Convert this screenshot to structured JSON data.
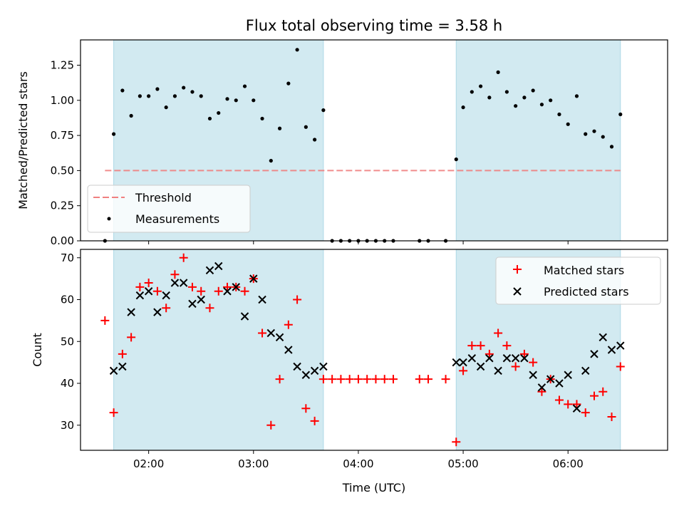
{
  "chart_data": {
    "type": "scatter",
    "title": "Flux total observing time = 3.58 h",
    "xlabel": "Time (UTC)",
    "x_unit": "UTC time (HH:MM)",
    "xlim": [
      "01:21",
      "06:57"
    ],
    "x_ticks": [
      "02:00",
      "03:00",
      "04:00",
      "05:00",
      "06:00"
    ],
    "shaded_intervals": [
      [
        "01:40",
        "03:40"
      ],
      [
        "04:56",
        "06:30"
      ]
    ],
    "shade_color": "#add8e6",
    "panels": [
      {
        "id": "ratio",
        "ylabel": "Matched/Predicted stars",
        "ylim": [
          0,
          1.43
        ],
        "y_ticks": [
          0,
          0.25,
          0.5,
          0.75,
          1.0,
          1.25
        ],
        "y_tick_labels": [
          "0.00",
          "0.25",
          "0.50",
          "0.75",
          "1.00",
          "1.25"
        ],
        "legend_position": "lower-left",
        "threshold": {
          "name": "Threshold",
          "value": 0.5,
          "x_range": [
            "01:35",
            "06:30"
          ],
          "color": "#f08080",
          "style": "dashed"
        },
        "series": [
          {
            "name": "Measurements",
            "marker": "dot",
            "color": "#000000",
            "x": [
              "01:35",
              "01:40",
              "01:45",
              "01:50",
              "01:55",
              "02:00",
              "02:05",
              "02:10",
              "02:15",
              "02:20",
              "02:25",
              "02:30",
              "02:35",
              "02:40",
              "02:45",
              "02:50",
              "02:55",
              "03:00",
              "03:05",
              "03:10",
              "03:15",
              "03:20",
              "03:25",
              "03:30",
              "03:35",
              "03:40",
              "03:45",
              "03:50",
              "03:55",
              "04:00",
              "04:05",
              "04:10",
              "04:15",
              "04:20",
              "04:35",
              "04:40",
              "04:50",
              "04:56",
              "05:00",
              "05:05",
              "05:10",
              "05:15",
              "05:20",
              "05:25",
              "05:30",
              "05:35",
              "05:40",
              "05:45",
              "05:50",
              "05:55",
              "06:00",
              "06:05",
              "06:10",
              "06:15",
              "06:20",
              "06:25",
              "06:30"
            ],
            "y": [
              0.0,
              0.76,
              1.07,
              0.89,
              1.03,
              1.03,
              1.08,
              0.95,
              1.03,
              1.09,
              1.06,
              1.03,
              0.87,
              0.91,
              1.01,
              1.0,
              1.1,
              1.0,
              0.87,
              0.57,
              0.8,
              1.12,
              1.36,
              0.81,
              0.72,
              0.93,
              0.0,
              0.0,
              0.0,
              0.0,
              0.0,
              0.0,
              0.0,
              0.0,
              0.0,
              0.0,
              0.0,
              0.58,
              0.95,
              1.06,
              1.1,
              1.02,
              1.2,
              1.06,
              0.96,
              1.02,
              1.07,
              0.97,
              1.0,
              0.9,
              0.83,
              1.03,
              0.76,
              0.78,
              0.74,
              0.67,
              0.9
            ]
          }
        ]
      },
      {
        "id": "count",
        "ylabel": "Count",
        "ylim": [
          24,
          72
        ],
        "y_ticks": [
          30,
          40,
          50,
          60,
          70
        ],
        "y_tick_labels": [
          "30",
          "40",
          "50",
          "60",
          "70"
        ],
        "legend_position": "upper-right",
        "series": [
          {
            "name": "Matched stars",
            "marker": "plus",
            "color": "#ff0000",
            "x": [
              "01:35",
              "01:40",
              "01:45",
              "01:50",
              "01:55",
              "02:00",
              "02:05",
              "02:10",
              "02:15",
              "02:20",
              "02:25",
              "02:30",
              "02:35",
              "02:40",
              "02:45",
              "02:50",
              "02:55",
              "03:00",
              "03:05",
              "03:10",
              "03:15",
              "03:20",
              "03:25",
              "03:30",
              "03:35",
              "03:40",
              "03:45",
              "03:50",
              "03:55",
              "04:00",
              "04:05",
              "04:10",
              "04:15",
              "04:20",
              "04:35",
              "04:40",
              "04:50",
              "04:56",
              "05:00",
              "05:05",
              "05:10",
              "05:15",
              "05:20",
              "05:25",
              "05:30",
              "05:35",
              "05:40",
              "05:45",
              "05:50",
              "05:55",
              "06:00",
              "06:05",
              "06:10",
              "06:15",
              "06:20",
              "06:25",
              "06:30"
            ],
            "y": [
              55,
              33,
              47,
              51,
              63,
              64,
              62,
              58,
              66,
              70,
              63,
              62,
              58,
              62,
              63,
              63,
              62,
              65,
              52,
              30,
              41,
              54,
              60,
              34,
              31,
              41,
              41,
              41,
              41,
              41,
              41,
              41,
              41,
              41,
              41,
              41,
              41,
              26,
              43,
              49,
              49,
              47,
              52,
              49,
              44,
              47,
              45,
              38,
              41,
              36,
              35,
              35,
              33,
              37,
              38,
              32,
              44
            ]
          },
          {
            "name": "Predicted stars",
            "marker": "x",
            "color": "#000000",
            "x": [
              "01:40",
              "01:45",
              "01:50",
              "01:55",
              "02:00",
              "02:05",
              "02:10",
              "02:15",
              "02:20",
              "02:25",
              "02:30",
              "02:35",
              "02:40",
              "02:45",
              "02:50",
              "02:55",
              "03:00",
              "03:05",
              "03:10",
              "03:15",
              "03:20",
              "03:25",
              "03:30",
              "03:35",
              "03:40",
              "04:56",
              "05:00",
              "05:05",
              "05:10",
              "05:15",
              "05:20",
              "05:25",
              "05:30",
              "05:35",
              "05:40",
              "05:45",
              "05:50",
              "05:55",
              "06:00",
              "06:05",
              "06:10",
              "06:15",
              "06:20",
              "06:25",
              "06:30"
            ],
            "y": [
              43,
              44,
              57,
              61,
              62,
              57,
              61,
              64,
              64,
              59,
              60,
              67,
              68,
              62,
              63,
              56,
              65,
              60,
              52,
              51,
              48,
              44,
              42,
              43,
              44,
              45,
              45,
              46,
              44,
              46,
              43,
              46,
              46,
              46,
              42,
              39,
              41,
              40,
              42,
              34,
              43,
              47,
              51,
              48,
              49
            ]
          }
        ]
      }
    ]
  }
}
